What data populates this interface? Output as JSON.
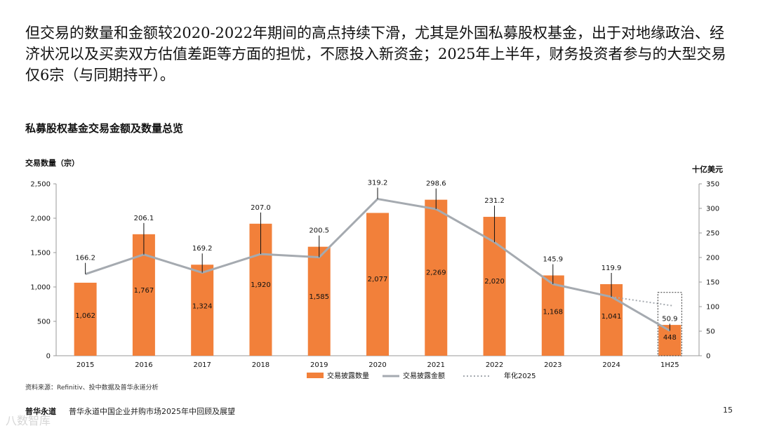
{
  "intro_text": "但交易的数量和金额较2020-2022年期间的高点持续下滑，尤其是外国私募股权基金，出于对地缘政治、经济状况以及买卖双方估值差距等方面的担忧，不愿投入新资金；2025年上半年，财务投资者参与的大型交易仅6宗（与同期持平）。",
  "chart_title": "私募股权基金交易金额及数量总览",
  "axis_left_title": "交易数量（宗）",
  "axis_right_title": "十亿美元",
  "source": "资料来源：Refinitiv、投中数据及普华永道分析",
  "footer": {
    "brand": "普华永道",
    "title": "普华永道中国企业并购市场2025年中回顾及展望",
    "page": "15",
    "watermark": "八数智库"
  },
  "colors": {
    "bar": "#F2803A",
    "line": "#A5AAB0",
    "annualized": "#A5AAB0",
    "leader": "#111111"
  },
  "chart_data": {
    "type": "bar",
    "categories": [
      "2015",
      "2016",
      "2017",
      "2018",
      "2019",
      "2020",
      "2021",
      "2022",
      "2023",
      "2024",
      "1H25"
    ],
    "series": [
      {
        "name": "交易披露数量",
        "type": "bar",
        "axis": "left",
        "values": [
          1062,
          1767,
          1324,
          1920,
          1585,
          2077,
          2269,
          2020,
          1168,
          1041,
          448
        ],
        "labels": [
          "1,062",
          "1,767",
          "1,324",
          "1,920",
          "1,585",
          "2,077",
          "2,269",
          "2,020",
          "1,168",
          "1,041",
          "448"
        ]
      },
      {
        "name": "交易披露金额",
        "type": "line",
        "axis": "right",
        "values": [
          166.2,
          206.1,
          169.2,
          207.0,
          200.5,
          319.2,
          298.6,
          231.2,
          145.9,
          119.9,
          50.9
        ],
        "labels": [
          "166.2",
          "206.1",
          "169.2",
          "207.0",
          "200.5",
          "319.2",
          "298.6",
          "231.2",
          "145.9",
          "119.9",
          "50.9"
        ]
      },
      {
        "name": "年化2025",
        "type": "line-dotted",
        "axis": "right",
        "x": [
          "2024",
          "1H25"
        ],
        "values": [
          119.9,
          101.8
        ]
      }
    ],
    "left_axis": {
      "min": 0,
      "max": 2500,
      "step": 500,
      "ticks": [
        "0",
        "500",
        "1,000",
        "1,500",
        "2,000",
        "2,500"
      ]
    },
    "right_axis": {
      "min": 0,
      "max": 350,
      "step": 50,
      "ticks": [
        "0",
        "50",
        "100",
        "150",
        "200",
        "250",
        "300",
        "350"
      ]
    },
    "legend_position": "bottom"
  }
}
